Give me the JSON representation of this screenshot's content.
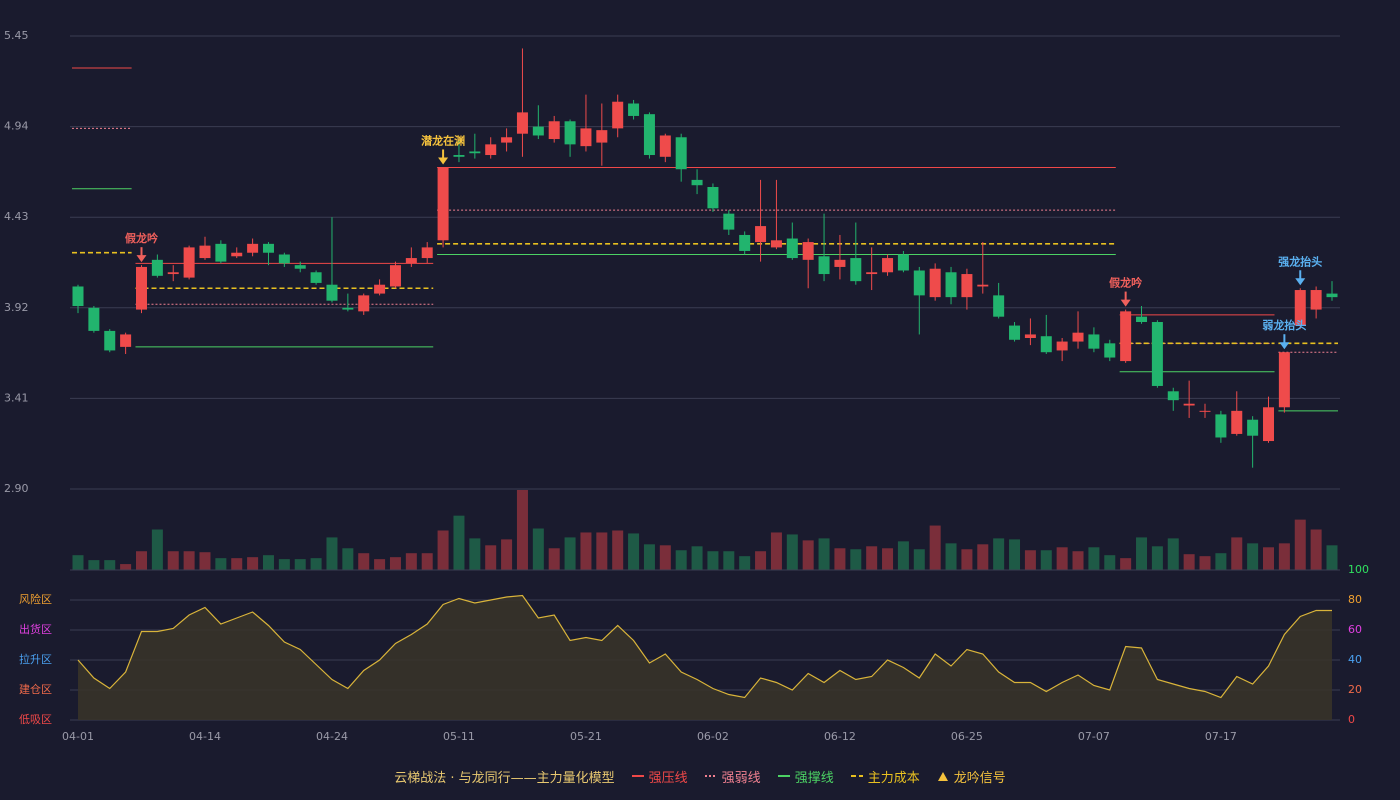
{
  "chart_data": [
    {
      "type": "candlestick",
      "categories": [
        "04-01",
        null,
        null,
        null,
        null,
        null,
        null,
        null,
        "04-14",
        null,
        null,
        null,
        null,
        null,
        null,
        null,
        "04-24",
        null,
        null,
        null,
        null,
        null,
        null,
        null,
        "05-11",
        null,
        null,
        null,
        null,
        null,
        null,
        null,
        "05-21",
        null,
        null,
        null,
        null,
        null,
        null,
        null,
        "06-02",
        null,
        null,
        null,
        null,
        null,
        null,
        null,
        "06-12",
        null,
        null,
        null,
        null,
        null,
        null,
        null,
        "06-25",
        null,
        null,
        null,
        null,
        null,
        null,
        null,
        "07-07",
        null,
        null,
        null,
        null,
        null,
        null,
        null,
        "07-17",
        null,
        null,
        null,
        null,
        null,
        null,
        null
      ],
      "open": [
        4.04,
        3.92,
        3.79,
        3.7,
        3.91,
        4.19,
        4.11,
        4.09,
        4.2,
        4.28,
        4.21,
        4.23,
        4.28,
        4.22,
        4.16,
        4.12,
        4.05,
        3.92,
        3.9,
        4.0,
        4.04,
        4.17,
        4.2,
        4.3,
        4.78,
        4.8,
        4.78,
        4.85,
        4.9,
        4.94,
        4.87,
        4.97,
        4.83,
        4.85,
        4.93,
        5.07,
        5.01,
        4.77,
        4.88,
        4.64,
        4.6,
        4.45,
        4.33,
        4.29,
        4.26,
        4.31,
        4.19,
        4.21,
        4.15,
        4.2,
        4.11,
        4.12,
        4.22,
        4.13,
        3.98,
        4.12,
        3.98,
        4.04,
        3.99,
        3.82,
        3.75,
        3.76,
        3.68,
        3.73,
        3.77,
        3.72,
        3.62,
        3.87,
        3.84,
        3.45,
        3.37,
        3.34,
        3.32,
        3.21,
        3.29,
        3.17,
        3.36,
        3.82,
        3.91,
        4.0
      ],
      "high": [
        4.05,
        3.93,
        3.8,
        3.78,
        4.16,
        4.22,
        4.16,
        4.27,
        4.32,
        4.3,
        4.26,
        4.31,
        4.29,
        4.23,
        4.18,
        4.13,
        4.43,
        4.0,
        4.0,
        4.08,
        4.18,
        4.26,
        4.29,
        4.71,
        4.86,
        4.9,
        4.88,
        4.93,
        5.38,
        5.06,
        5.0,
        4.98,
        5.12,
        5.07,
        5.12,
        5.09,
        5.02,
        4.9,
        4.9,
        4.7,
        4.62,
        4.47,
        4.35,
        4.64,
        4.64,
        4.4,
        4.31,
        4.45,
        4.33,
        4.4,
        4.26,
        4.22,
        4.24,
        4.15,
        4.17,
        4.15,
        4.14,
        4.29,
        4.06,
        3.84,
        3.86,
        3.88,
        3.75,
        3.9,
        3.81,
        3.74,
        3.91,
        3.93,
        3.85,
        3.47,
        3.51,
        3.38,
        3.34,
        3.45,
        3.31,
        3.42,
        3.67,
        4.03,
        4.04,
        4.07
      ],
      "low": [
        3.89,
        3.78,
        3.67,
        3.66,
        3.89,
        4.09,
        4.07,
        4.08,
        4.19,
        4.17,
        4.2,
        4.21,
        4.16,
        4.15,
        4.12,
        4.05,
        3.95,
        3.9,
        3.88,
        3.99,
        4.03,
        4.15,
        4.17,
        4.26,
        4.74,
        4.76,
        4.76,
        4.8,
        4.77,
        4.87,
        4.85,
        4.77,
        4.8,
        4.72,
        4.88,
        4.98,
        4.76,
        4.74,
        4.63,
        4.56,
        4.46,
        4.33,
        4.22,
        4.18,
        4.25,
        4.19,
        4.03,
        4.07,
        4.08,
        4.05,
        4.02,
        4.1,
        4.12,
        3.77,
        3.96,
        3.94,
        3.91,
        4.0,
        3.86,
        3.73,
        3.71,
        3.66,
        3.62,
        3.69,
        3.67,
        3.62,
        3.61,
        3.83,
        3.47,
        3.34,
        3.3,
        3.3,
        3.16,
        3.2,
        3.02,
        3.16,
        3.33,
        3.8,
        3.86,
        3.96
      ],
      "close": [
        3.93,
        3.79,
        3.68,
        3.77,
        4.15,
        4.1,
        4.12,
        4.26,
        4.27,
        4.18,
        4.23,
        4.28,
        4.23,
        4.17,
        4.14,
        4.06,
        3.96,
        3.91,
        3.99,
        4.05,
        4.16,
        4.2,
        4.26,
        4.71,
        4.77,
        4.79,
        4.84,
        4.88,
        5.02,
        4.89,
        4.97,
        4.84,
        4.93,
        4.92,
        5.08,
        5.0,
        4.78,
        4.89,
        4.7,
        4.61,
        4.48,
        4.36,
        4.24,
        4.38,
        4.3,
        4.2,
        4.29,
        4.11,
        4.19,
        4.07,
        4.12,
        4.2,
        4.13,
        3.99,
        4.14,
        3.98,
        4.11,
        4.05,
        3.87,
        3.74,
        3.77,
        3.67,
        3.73,
        3.78,
        3.69,
        3.64,
        3.9,
        3.84,
        3.48,
        3.4,
        3.38,
        3.34,
        3.19,
        3.34,
        3.2,
        3.36,
        3.67,
        4.02,
        4.02,
        3.98
      ],
      "up_color": "#ef4b4b",
      "down_color": "#22b46e",
      "ylim": [
        2.9,
        5.45
      ],
      "yticks": [
        {
          "value": 2.9,
          "label": "2.90"
        },
        3.41,
        3.92,
        4.43,
        4.94,
        5.45
      ],
      "grid": true,
      "levels": [
        {
          "start": 0,
          "end": 3,
          "strong": 5.27,
          "weak": 4.93,
          "support": 4.59,
          "cost": 4.23
        },
        {
          "start": 4,
          "end": 22,
          "strong": 4.17,
          "weak": 3.94,
          "support": 3.7,
          "cost": 4.03
        },
        {
          "start": 23,
          "end": 65,
          "strong": 4.71,
          "weak": 4.47,
          "support": 4.22,
          "cost": 4.28
        },
        {
          "start": 66,
          "end": 75,
          "strong": 3.88,
          "weak": 3.72,
          "support": 3.56,
          "cost": 3.72
        },
        {
          "start": 76,
          "end": 79,
          "strong": null,
          "weak": 3.67,
          "support": 3.34,
          "cost": 3.72
        }
      ],
      "signals": [
        {
          "index": 4,
          "text": "假龙吟",
          "color": "#f0605c"
        },
        {
          "index": 23,
          "text": "潜龙在渊",
          "color": "#f5c23d"
        },
        {
          "index": 66,
          "text": "假龙吟",
          "color": "#f0605c"
        },
        {
          "index": 76,
          "text": "弱龙抬头",
          "color": "#5ab0f0"
        },
        {
          "index": 77,
          "text": "强龙抬头",
          "color": "#5ab0f0"
        }
      ]
    },
    {
      "type": "bar",
      "values": [
        15,
        10,
        10,
        6,
        19,
        41,
        19,
        19,
        18,
        12,
        12,
        13,
        15,
        11,
        11,
        12,
        33,
        22,
        17,
        11,
        13,
        17,
        17,
        40,
        55,
        32,
        25,
        31,
        81,
        42,
        22,
        33,
        38,
        38,
        40,
        37,
        26,
        25,
        20,
        24,
        19,
        19,
        14,
        19,
        38,
        36,
        30,
        32,
        22,
        21,
        24,
        22,
        29,
        21,
        45,
        27,
        21,
        26,
        32,
        31,
        20,
        20,
        23,
        19,
        23,
        15,
        12,
        33,
        24,
        32,
        16,
        14,
        17,
        33,
        27,
        23,
        27,
        51,
        41,
        25
      ],
      "up_color": "#7a2e3a",
      "down_color": "#1e5a46",
      "ylim": [
        0,
        82
      ]
    },
    {
      "type": "line",
      "values": [
        40,
        28,
        21,
        32,
        59,
        59,
        61,
        70,
        75,
        64,
        68,
        72,
        63,
        52,
        47,
        37,
        27,
        21,
        33,
        40,
        51,
        57,
        64,
        77,
        81,
        78,
        80,
        82,
        83,
        68,
        70,
        53,
        55,
        53,
        63,
        53,
        38,
        44,
        32,
        27,
        21,
        17,
        15,
        28,
        25,
        20,
        31,
        25,
        33,
        27,
        29,
        40,
        35,
        28,
        44,
        36,
        47,
        44,
        32,
        25,
        25,
        19,
        25,
        30,
        23,
        20,
        49,
        48,
        27,
        24,
        21,
        19,
        15,
        29,
        24,
        36,
        57,
        69,
        73,
        73
      ],
      "color": "#d9b43a",
      "ylim": [
        0,
        100
      ],
      "yticks": [
        0,
        20,
        40,
        60,
        80,
        100
      ],
      "ytick_colors": [
        "#f04848",
        "#f06a4a",
        "#4aa0f0",
        "#e040e0",
        "#f0a030",
        "#30e060"
      ],
      "zones": [
        {
          "value": 80,
          "label": "风险区",
          "color": "#f0a030"
        },
        {
          "value": 60,
          "label": "出货区",
          "color": "#e040e0"
        },
        {
          "value": 40,
          "label": "拉升区",
          "color": "#4aa0f0"
        },
        {
          "value": 20,
          "label": "建仓区",
          "color": "#f06a4a"
        },
        {
          "value": 0,
          "label": "低吸区",
          "color": "#f04848"
        }
      ]
    }
  ],
  "legend": {
    "title": "云梯战法 · 与龙同行——主力量化模型",
    "title_color": "#e8c870",
    "items": [
      {
        "label": "强压线",
        "color": "#f04848",
        "dash": "none"
      },
      {
        "label": "强弱线",
        "color": "#f08090",
        "dash": "2,2"
      },
      {
        "label": "强撑线",
        "color": "#4cd264",
        "dash": "none"
      },
      {
        "label": "主力成本",
        "color": "#e8c020",
        "dash": "5,3"
      },
      {
        "label": "龙吟信号",
        "color": "#f5c23d",
        "dash": "triangle"
      }
    ]
  }
}
